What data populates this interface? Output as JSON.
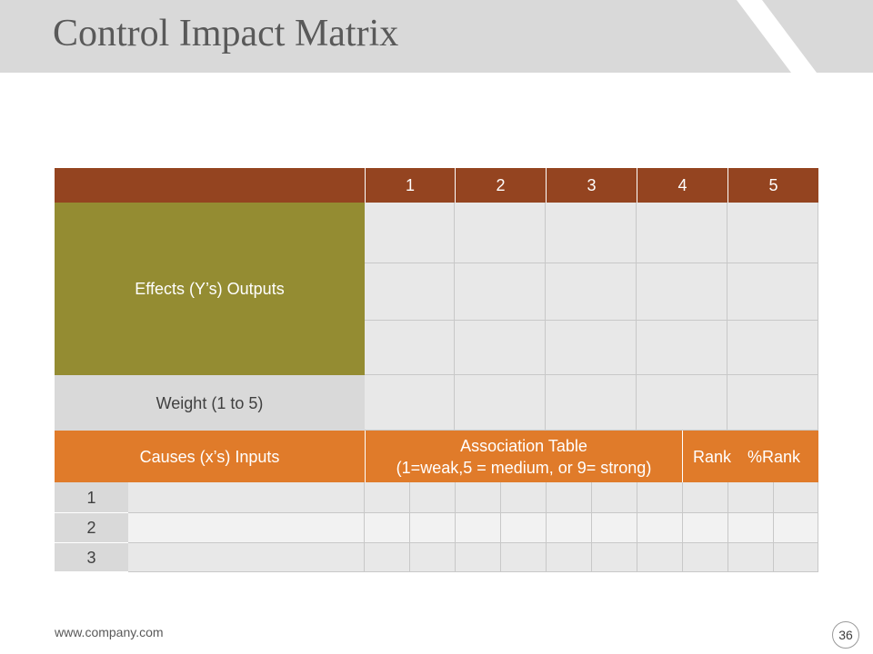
{
  "slide": {
    "title": "Control Impact Matrix",
    "footer_url": "www.company.com",
    "page_number": "36"
  },
  "colors": {
    "header_gray": "#d9d9d9",
    "rust": "#944420",
    "olive": "#948c32",
    "orange": "#e07b2a",
    "cell_gray": "#e8e8e8"
  },
  "matrix": {
    "column_headers": [
      "1",
      "2",
      "3",
      "4",
      "5"
    ],
    "effects_label": "Effects (Y’s) Outputs",
    "weight_label": "Weight (1 to 5)",
    "causes_label": "Causes (x’s) Inputs",
    "association_title": "Association Table",
    "association_scale": "(1=weak,5 = medium, or 9= strong)",
    "rank_label": "Rank",
    "percent_rank_label": "%Rank",
    "cause_rows": [
      "1",
      "2",
      "3"
    ]
  }
}
